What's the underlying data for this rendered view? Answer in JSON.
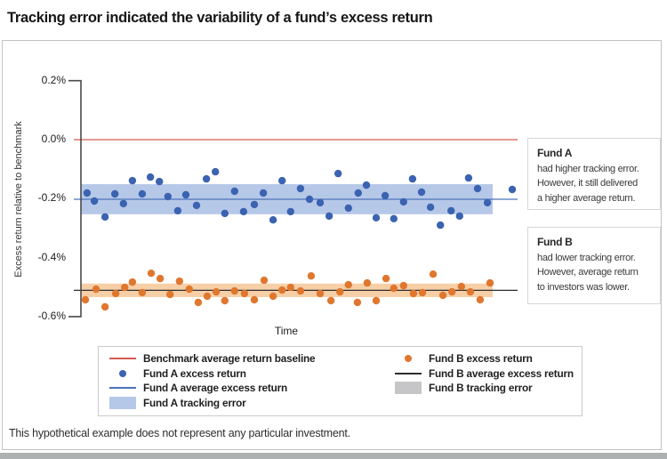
{
  "page": {
    "title": "Tracking error indicated the variability of a fund’s excess return",
    "footnote": "This hypothetical example does not represent any particular investment."
  },
  "annotations": {
    "fund_a": {
      "title": "Fund A",
      "body": "had higher tracking error.\nHowever, it still delivered\na higher average return."
    },
    "fund_b": {
      "title": "Fund B",
      "body": "had lower tracking error.\nHowever, average return\nto investors was lower."
    }
  },
  "legend": {
    "left": [
      {
        "swatch": "line",
        "color": "#d45a50",
        "label": "Benchmark average return baseline"
      },
      {
        "swatch": "dot",
        "color": "#3b63b1",
        "label": "Fund A excess return"
      },
      {
        "swatch": "line",
        "color": "#4b73ba",
        "label": "Fund A average excess return"
      },
      {
        "swatch": "band",
        "color": "#b6c8e8",
        "label": "Fund A tracking error"
      }
    ],
    "right": [
      {
        "swatch": "dot",
        "color": "#e0772f",
        "label": "Fund B excess return"
      },
      {
        "swatch": "line",
        "color": "#2e2e2e",
        "label": "Fund B average excess return"
      },
      {
        "swatch": "band",
        "color": "#c6c6c8",
        "label": "Fund B tracking error"
      }
    ]
  },
  "chart_data": {
    "type": "scatter",
    "title": "Tracking error indicated the variability of a fund’s excess return",
    "xlabel": "Time",
    "ylabel": "Excess return relative to benchmark",
    "y_unit": "%",
    "ylim": [
      -0.6,
      0.2
    ],
    "grid": false,
    "y_ticks": [
      {
        "value": 0.2,
        "label": "0.2%"
      },
      {
        "value": 0.0,
        "label": "0.0%"
      },
      {
        "value": -0.2,
        "label": "-0.2%"
      },
      {
        "value": -0.4,
        "label": "-0.4%"
      },
      {
        "value": -0.6,
        "label": "-0.6%"
      }
    ],
    "benchmark": {
      "name": "Benchmark average return baseline",
      "value": 0.0,
      "color": "#d45a50"
    },
    "series": [
      {
        "id": "fund-a",
        "name": "Fund A excess return",
        "color": "#3b63b1",
        "mean": -0.202,
        "mean_line_color": "#4b73ba",
        "band": [
          -0.151,
          -0.253
        ],
        "band_color": "#b6c8e8",
        "points": [
          [
            0.6,
            -0.181
          ],
          [
            2.3,
            -0.208
          ],
          [
            4.8,
            -0.262
          ],
          [
            7.1,
            -0.184
          ],
          [
            9.1,
            -0.217
          ],
          [
            11.2,
            -0.139
          ],
          [
            13.5,
            -0.184
          ],
          [
            15.4,
            -0.127
          ],
          [
            17.5,
            -0.142
          ],
          [
            19.5,
            -0.193
          ],
          [
            21.8,
            -0.241
          ],
          [
            23.7,
            -0.187
          ],
          [
            26.2,
            -0.223
          ],
          [
            28.5,
            -0.133
          ],
          [
            30.6,
            -0.109
          ],
          [
            32.8,
            -0.25
          ],
          [
            35.1,
            -0.175
          ],
          [
            37.2,
            -0.244
          ],
          [
            39.7,
            -0.22
          ],
          [
            41.8,
            -0.181
          ],
          [
            44.1,
            -0.272
          ],
          [
            46.2,
            -0.139
          ],
          [
            48.2,
            -0.244
          ],
          [
            50.5,
            -0.166
          ],
          [
            52.6,
            -0.202
          ],
          [
            55.1,
            -0.214
          ],
          [
            57.2,
            -0.259
          ],
          [
            59.3,
            -0.115
          ],
          [
            61.7,
            -0.232
          ],
          [
            64.0,
            -0.181
          ],
          [
            65.9,
            -0.154
          ],
          [
            68.2,
            -0.265
          ],
          [
            70.3,
            -0.19
          ],
          [
            72.3,
            -0.268
          ],
          [
            74.6,
            -0.211
          ],
          [
            76.7,
            -0.133
          ],
          [
            78.8,
            -0.178
          ],
          [
            80.9,
            -0.229
          ],
          [
            83.2,
            -0.29
          ],
          [
            85.7,
            -0.241
          ],
          [
            87.7,
            -0.259
          ],
          [
            89.8,
            -0.13
          ],
          [
            91.9,
            -0.166
          ],
          [
            94.2,
            -0.214
          ],
          [
            100.0,
            -0.169
          ]
        ]
      },
      {
        "id": "fund-b",
        "name": "Fund B excess return",
        "color": "#e0772f",
        "mean": -0.511,
        "mean_line_color": "#2e2e2e",
        "band": [
          -0.488,
          -0.534
        ],
        "band_color": "#f7cfa7",
        "points": [
          [
            0.2,
            -0.543
          ],
          [
            2.7,
            -0.507
          ],
          [
            4.8,
            -0.567
          ],
          [
            7.3,
            -0.522
          ],
          [
            9.4,
            -0.501
          ],
          [
            11.2,
            -0.483
          ],
          [
            13.5,
            -0.519
          ],
          [
            15.6,
            -0.453
          ],
          [
            17.7,
            -0.471
          ],
          [
            20.0,
            -0.525
          ],
          [
            22.2,
            -0.48
          ],
          [
            24.5,
            -0.507
          ],
          [
            26.6,
            -0.552
          ],
          [
            28.7,
            -0.531
          ],
          [
            30.8,
            -0.516
          ],
          [
            32.8,
            -0.546
          ],
          [
            35.1,
            -0.513
          ],
          [
            37.4,
            -0.522
          ],
          [
            39.7,
            -0.543
          ],
          [
            42.0,
            -0.477
          ],
          [
            44.1,
            -0.531
          ],
          [
            46.2,
            -0.51
          ],
          [
            48.2,
            -0.501
          ],
          [
            50.5,
            -0.513
          ],
          [
            53.0,
            -0.462
          ],
          [
            55.1,
            -0.522
          ],
          [
            57.6,
            -0.546
          ],
          [
            59.7,
            -0.516
          ],
          [
            61.7,
            -0.492
          ],
          [
            63.8,
            -0.552
          ],
          [
            66.1,
            -0.486
          ],
          [
            68.2,
            -0.546
          ],
          [
            70.5,
            -0.471
          ],
          [
            72.3,
            -0.504
          ],
          [
            74.6,
            -0.495
          ],
          [
            76.9,
            -0.522
          ],
          [
            79.0,
            -0.519
          ],
          [
            81.5,
            -0.456
          ],
          [
            83.8,
            -0.528
          ],
          [
            85.9,
            -0.516
          ],
          [
            88.1,
            -0.498
          ],
          [
            90.2,
            -0.516
          ],
          [
            92.5,
            -0.543
          ],
          [
            94.8,
            -0.486
          ]
        ]
      }
    ]
  }
}
